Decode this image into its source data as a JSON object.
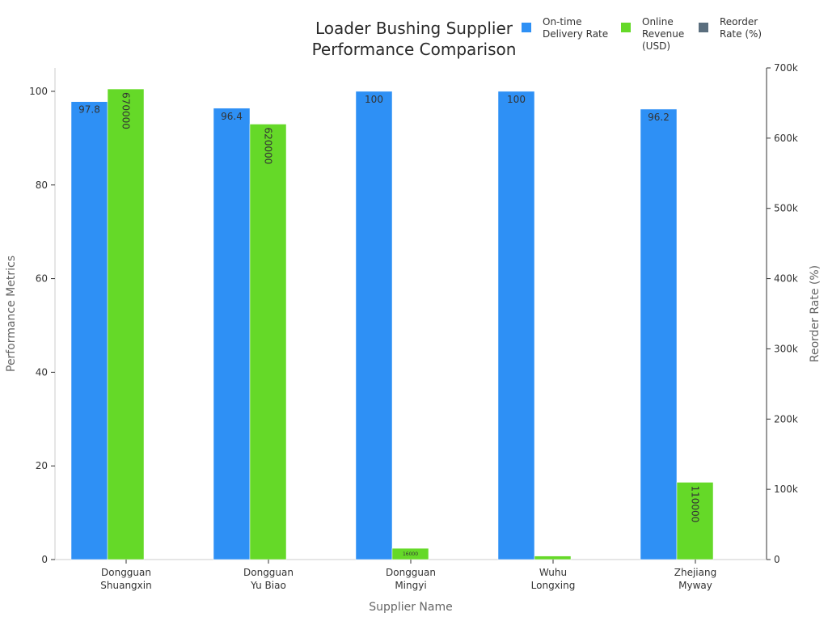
{
  "chart_data": {
    "type": "bar",
    "title": [
      "Loader Bushing Supplier",
      "Performance Comparison"
    ],
    "xlabel": "Supplier Name",
    "ylabel": "Performance Metrics",
    "y2label": "Reorder Rate (%)",
    "categories": [
      [
        "Dongguan",
        "Shuangxin"
      ],
      [
        "Dongguan",
        "Yu Biao"
      ],
      [
        "Dongguan",
        "Mingyi"
      ],
      [
        "Wuhu",
        "Longxing"
      ],
      [
        "Zhejiang",
        "Myway"
      ]
    ],
    "ylim": [
      0,
      105
    ],
    "y2lim": [
      0,
      700000
    ],
    "yticks": [
      0,
      20,
      40,
      60,
      80,
      100
    ],
    "y2ticks": [
      0,
      100000,
      200000,
      300000,
      400000,
      500000,
      600000,
      700000
    ],
    "y2ticklabels": [
      "0",
      "100k",
      "200k",
      "300k",
      "400k",
      "500k",
      "600k",
      "700k"
    ],
    "legend_position": "top-right",
    "grid": false,
    "series": [
      {
        "name": [
          "On-time",
          "Delivery Rate"
        ],
        "axis": "left",
        "color": "#2e90f5",
        "values": [
          97.8,
          96.4,
          100,
          100,
          96.2
        ],
        "labels": [
          "97.8",
          "96.4",
          "100",
          "100",
          "96.2"
        ]
      },
      {
        "name": [
          "Online",
          "Revenue",
          "(USD)"
        ],
        "axis": "right",
        "color": "#65d928",
        "values": [
          670000,
          620000,
          16000,
          5000,
          110000
        ],
        "labels": [
          "670000",
          "620000",
          "16000",
          "",
          "110000"
        ]
      },
      {
        "name": [
          "Reorder",
          "Rate (%)"
        ],
        "axis": "right",
        "color": "#5a6e7e",
        "values": [
          0,
          0,
          0,
          0,
          0
        ],
        "labels": []
      }
    ]
  }
}
